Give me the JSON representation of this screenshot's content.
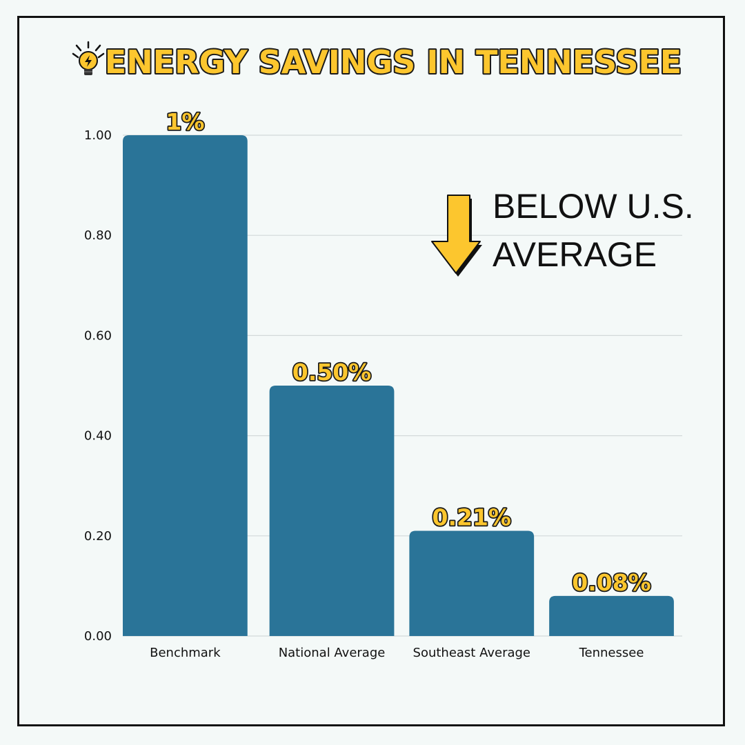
{
  "colors": {
    "background": "#f4f9f8",
    "bar": "#2a7498",
    "accent": "#fcc62e",
    "grid": "#d2d9d9",
    "text": "#111111"
  },
  "icons": {
    "title_icon": "lightbulb-icon",
    "annotation_icon": "arrow-down-icon"
  },
  "annotation": {
    "line1": "BELOW U.S.",
    "line2": "AVERAGE"
  },
  "chart_data": {
    "type": "bar",
    "title": "ENERGY SAVINGS IN TENNESSEE",
    "categories": [
      "Benchmark",
      "National Average",
      "Southeast Average",
      "Tennessee"
    ],
    "values": [
      1.0,
      0.5,
      0.21,
      0.08
    ],
    "data_labels": [
      "1%",
      "0.50%",
      "0.21%",
      "0.08%"
    ],
    "yticks": [
      0,
      0.2,
      0.4,
      0.6,
      0.8,
      1.0
    ],
    "ytick_labels": [
      "0.00",
      "0.20",
      "0.40",
      "0.60",
      "0.80",
      "1.00"
    ],
    "ylim": [
      0,
      1.0
    ],
    "xlabel": "",
    "ylabel": "",
    "grid": true,
    "legend": "none"
  }
}
